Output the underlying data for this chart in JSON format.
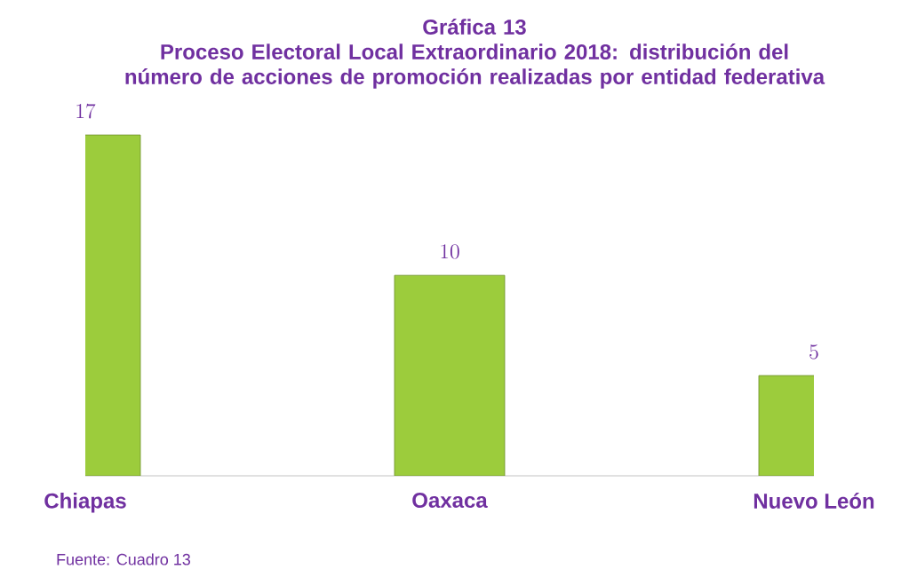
{
  "chart_data": {
    "type": "bar",
    "title": "Gráfica 13",
    "subtitle": "Proceso Electoral Local Extraordinario 2018: distribución del número de acciones de promoción realizadas por entidad federativa",
    "categories": [
      "Chiapas",
      "Oaxaca",
      "Nuevo León"
    ],
    "values": [
      17,
      10,
      5
    ],
    "color": "#9ccc3c",
    "data_labels": true,
    "annotations": [
      "Fuente: Cuadro 13"
    ]
  }
}
